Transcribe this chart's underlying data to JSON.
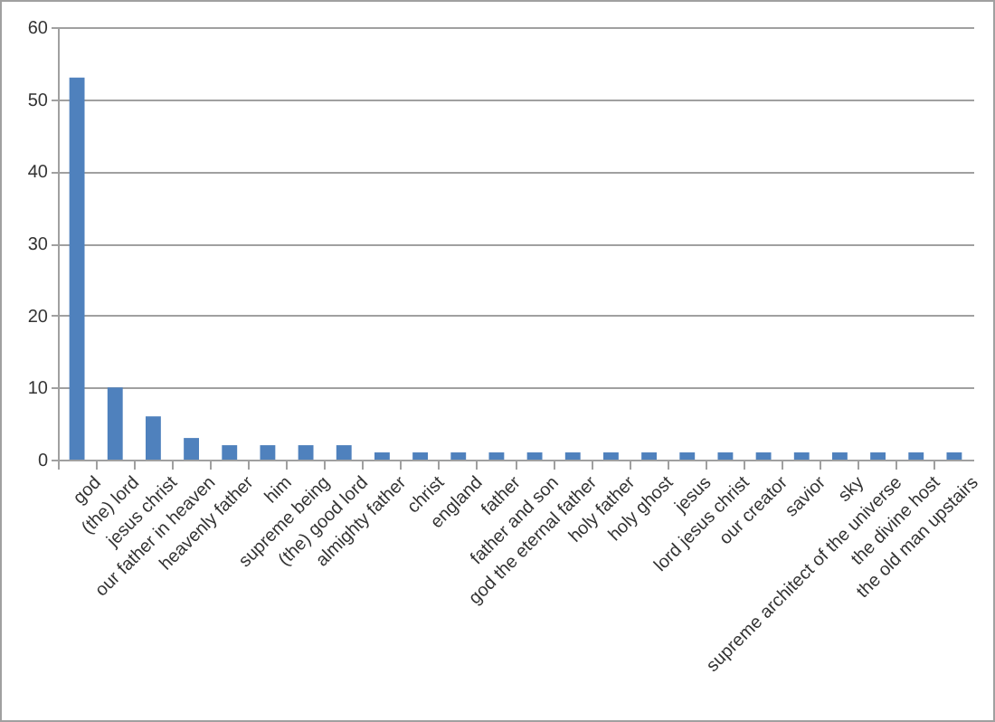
{
  "chart_data": {
    "type": "bar",
    "categories": [
      "god",
      "(the) lord",
      "jesus christ",
      "our father in heaven",
      "heavenly father",
      "him",
      "supreme being",
      "(the) good lord",
      "almighty father",
      "christ",
      "england",
      "father",
      "father and  son",
      "god the eternal father",
      "holy father",
      "holy ghost",
      "jesus",
      "lord jesus christ",
      "our creator",
      "savior",
      "sky",
      "supreme architect of the universe",
      "the divine host",
      "the old man upstairs"
    ],
    "values": [
      53,
      10,
      6,
      3,
      2,
      2,
      2,
      2,
      1,
      1,
      1,
      1,
      1,
      1,
      1,
      1,
      1,
      1,
      1,
      1,
      1,
      1,
      1,
      1
    ],
    "color": "#4f81bd",
    "ylim": [
      0,
      60
    ],
    "yticks": [
      0,
      10,
      20,
      30,
      40,
      50,
      60
    ],
    "grid": "y"
  }
}
